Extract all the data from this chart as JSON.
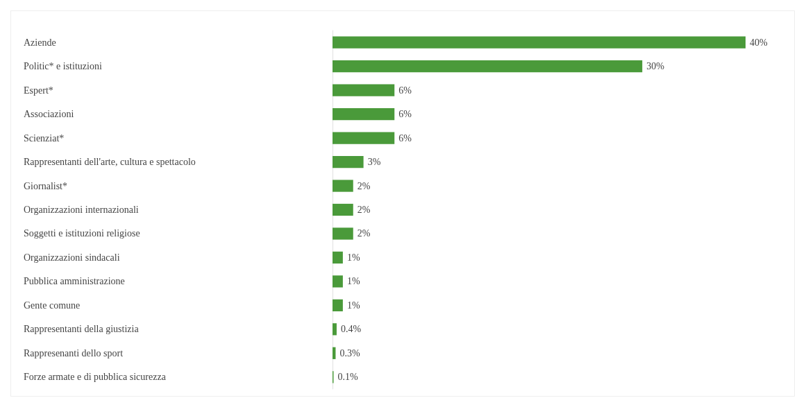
{
  "chart_data": {
    "type": "bar",
    "orientation": "horizontal",
    "categories": [
      "Aziende",
      "Politic* e istituzioni",
      "Espert*",
      "Associazioni",
      "Scienziat*",
      "Rappresentanti dell'arte, cultura e spettacolo",
      "Giornalist*",
      "Organizzazioni internazionali",
      "Soggetti e istituzioni religiose",
      "Organizzazioni sindacali",
      "Pubblica amministrazione",
      "Gente comune",
      "Rappresentanti della giustizia",
      "Rappresenanti dello sport",
      "Forze armate e di pubblica sicurezza"
    ],
    "values": [
      40,
      30,
      6,
      6,
      6,
      3,
      2,
      2,
      2,
      1,
      1,
      1,
      0.4,
      0.3,
      0.1
    ],
    "value_labels": [
      "40%",
      "30%",
      "6%",
      "6%",
      "6%",
      "3%",
      "2%",
      "2%",
      "2%",
      "1%",
      "1%",
      "1%",
      "0.4%",
      "0.3%",
      "0.1%"
    ],
    "color": "#4a9a3a",
    "tick_labels": "y"
  }
}
